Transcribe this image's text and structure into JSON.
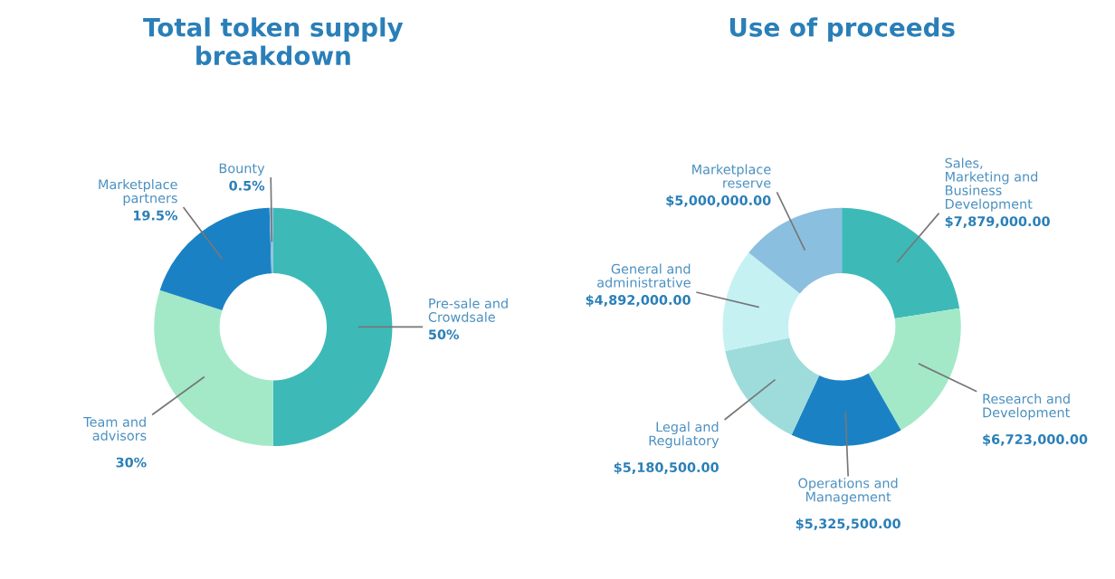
{
  "chart_data": [
    {
      "type": "donut",
      "title": "Total token supply breakdown",
      "categories": [
        "Pre-sale and Crowdsale",
        "Team and advisors",
        "Marketplace partners",
        "Bounty"
      ],
      "values": [
        50,
        30,
        19.5,
        0.5
      ],
      "value_labels": [
        "50%",
        "30%",
        "19.5%",
        "0.5%"
      ],
      "colors": [
        "#3dbab8",
        "#a3e9c8",
        "#1a82c4",
        "#8bbfe0"
      ]
    },
    {
      "type": "donut",
      "title": "Use of proceeds",
      "categories": [
        "Sales, Marketing and Business Development",
        "Research and Development",
        "Operations and Management",
        "Legal and Regulatory",
        "General and administrative",
        "Marketplace reserve"
      ],
      "values": [
        7879000,
        6723000,
        5325500,
        5180500,
        4892000,
        5000000
      ],
      "value_labels": [
        "$7,879,000.00",
        "$6,723,000.00",
        "$5,325,500.00",
        "$5,180,500.00",
        "$4,892,000.00",
        "$5,000,000.00"
      ],
      "colors": [
        "#3dbab8",
        "#a3e9c8",
        "#1a82c4",
        "#9edcdc",
        "#c5f1f3",
        "#8bbfe0"
      ]
    }
  ]
}
